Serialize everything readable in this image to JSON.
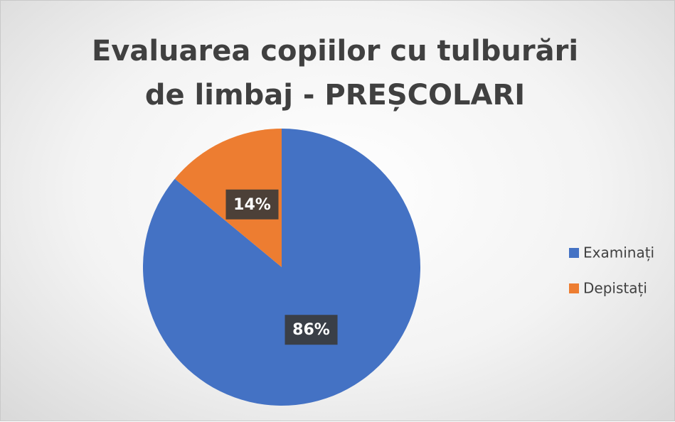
{
  "chart_data": {
    "type": "pie",
    "title": "Evaluarea copiilor cu tulburări de limbaj - PREȘCOLARI",
    "categories": [
      "Examinați",
      "Depistați"
    ],
    "values": [
      86,
      14
    ],
    "value_labels": [
      "86%",
      "14%"
    ],
    "colors": [
      "#4472c4",
      "#ed7d31"
    ],
    "legend": "right"
  }
}
